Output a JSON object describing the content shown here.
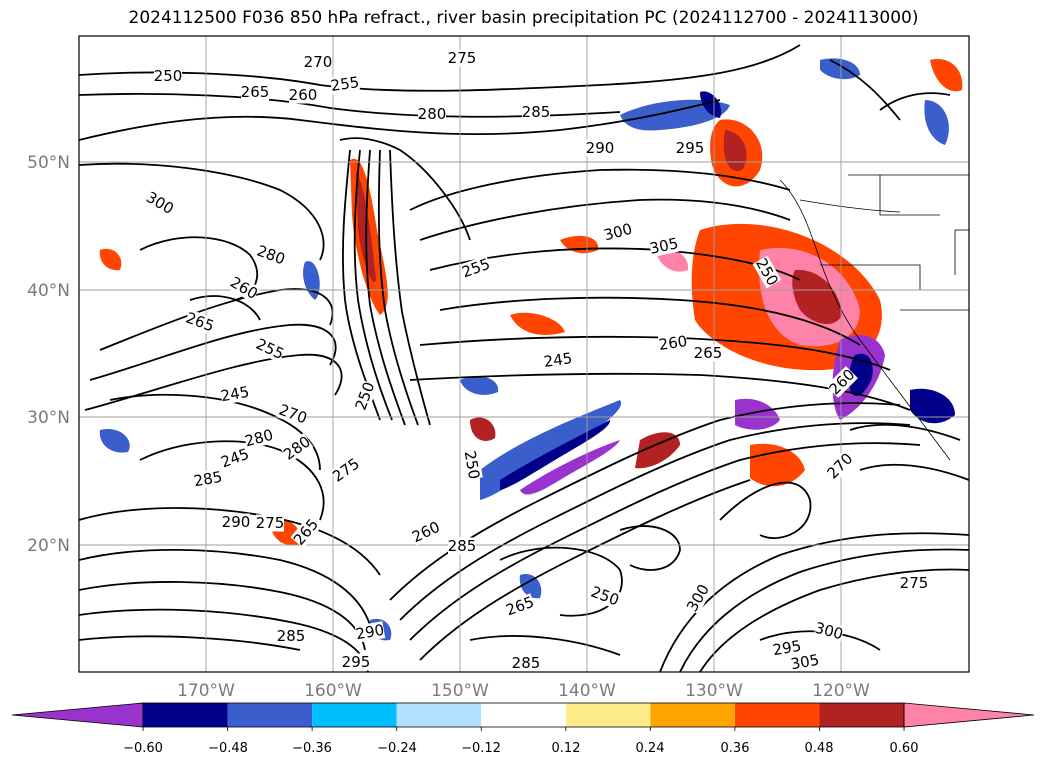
{
  "title": "2024112500 F036 850 hPa refract., river basin precipitation PC (2024112700 - 2024113000)",
  "latitude_labels": [
    "50°N",
    "40°N",
    "30°N",
    "20°N"
  ],
  "longitude_labels": [
    "170°W",
    "160°W",
    "150°W",
    "140°W",
    "130°W",
    "120°W"
  ],
  "colorbar": {
    "tick_labels": [
      "−0.60",
      "−0.48",
      "−0.36",
      "−0.24",
      "−0.12",
      "0.12",
      "0.24",
      "0.36",
      "0.48",
      "0.60"
    ],
    "colors": [
      "#9a32cd",
      "#00008b",
      "#3a5fcd",
      "#00bfff",
      "#b0e2ff",
      "#ffffff",
      "#ffec8b",
      "#ffa500",
      "#ff4500",
      "#b22222",
      "#ff83a8"
    ]
  },
  "contour_labels": [
    "250",
    "255",
    "260",
    "265",
    "270",
    "275",
    "280",
    "285",
    "290",
    "295",
    "300",
    "305",
    "250",
    "255",
    "260",
    "265",
    "245",
    "250",
    "250",
    "260",
    "270",
    "245",
    "280",
    "275",
    "270",
    "280",
    "285",
    "290",
    "275",
    "265",
    "260",
    "285",
    "265",
    "250",
    "300",
    "295",
    "300",
    "305",
    "285",
    "295",
    "275",
    "245",
    "255",
    "260",
    "265",
    "300",
    "280",
    "290",
    "285"
  ]
}
